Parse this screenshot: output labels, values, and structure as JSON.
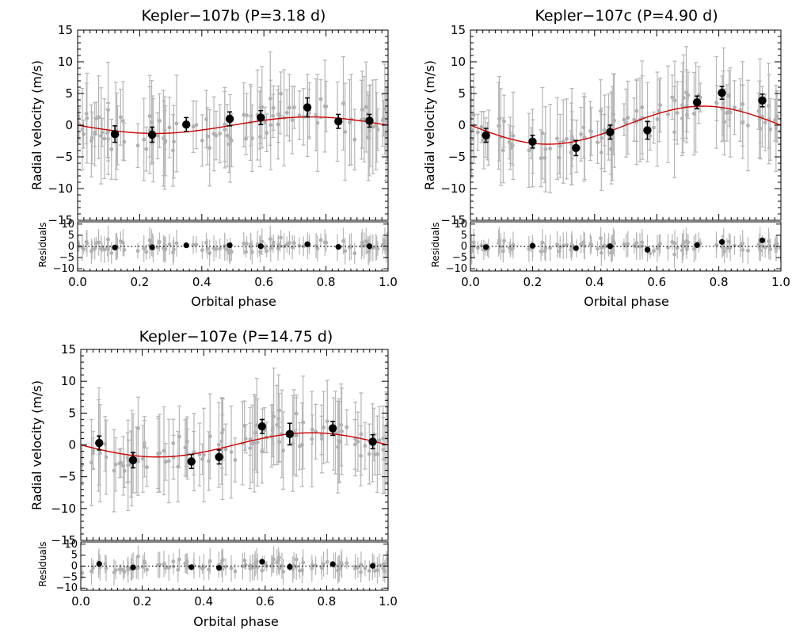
{
  "chart_data": [
    {
      "type": "scatter",
      "title": "Kepler−107b (P=3.18 d)",
      "xlabel": "Orbital phase",
      "ylabel": "Radial velocity (m/s)",
      "resid_label": "Residuals",
      "xlim": [
        0.0,
        1.0
      ],
      "ylim": [
        -15,
        15
      ],
      "resid_ylim": [
        -11,
        11
      ],
      "xticks": [
        "0.0",
        "0.2",
        "0.4",
        "0.6",
        "0.8",
        "1.0"
      ],
      "yticks": [
        "−15",
        "−10",
        "−5",
        "0",
        "5",
        "10",
        "15"
      ],
      "resid_yticks": [
        "−10",
        "−5",
        "0",
        "5",
        "10"
      ],
      "model": {
        "type": "sine",
        "amplitude": 1.3,
        "phase_offset": 0.0,
        "sign": -1,
        "color": "#cc0000"
      },
      "binned": {
        "phase": [
          0.12,
          0.24,
          0.35,
          0.49,
          0.59,
          0.74,
          0.84,
          0.94
        ],
        "rv": [
          -1.4,
          -1.5,
          0.1,
          1.0,
          1.2,
          2.8,
          0.6,
          0.7
        ],
        "rv_err": [
          1.3,
          1.2,
          1.1,
          1.1,
          1.1,
          1.5,
          1.1,
          1.0
        ],
        "resid": [
          -0.5,
          -0.4,
          0.5,
          0.5,
          0.1,
          1.0,
          -0.2,
          0.1
        ],
        "resid_err": [
          1.0,
          1.0,
          1.0,
          1.0,
          1.0,
          1.2,
          1.0,
          1.0
        ]
      }
    },
    {
      "type": "scatter",
      "title": "Kepler−107c (P=4.90 d)",
      "xlabel": "Orbital phase",
      "ylabel": "Radial velocity (m/s)",
      "resid_label": "Residuals",
      "xlim": [
        0.0,
        1.0
      ],
      "ylim": [
        -15,
        15
      ],
      "resid_ylim": [
        -11,
        11
      ],
      "xticks": [
        "0.0",
        "0.2",
        "0.4",
        "0.6",
        "0.8",
        "1.0"
      ],
      "yticks": [
        "−15",
        "−10",
        "−5",
        "0",
        "5",
        "10",
        "15"
      ],
      "resid_yticks": [
        "−10",
        "−5",
        "0",
        "5",
        "10"
      ],
      "model": {
        "type": "sine",
        "amplitude": 3.0,
        "phase_offset": 0.0,
        "sign": -1,
        "color": "#cc0000"
      },
      "binned": {
        "phase": [
          0.05,
          0.2,
          0.34,
          0.45,
          0.57,
          0.73,
          0.81,
          0.94
        ],
        "rv": [
          -1.6,
          -2.6,
          -3.6,
          -1.1,
          -0.8,
          3.6,
          5.1,
          3.9
        ],
        "rv_err": [
          1.1,
          1.0,
          1.2,
          1.1,
          1.4,
          1.0,
          1.0,
          1.0
        ],
        "resid": [
          -0.3,
          0.3,
          -0.8,
          0.1,
          -1.5,
          0.6,
          2.0,
          2.7
        ],
        "resid_err": [
          1.0,
          1.0,
          1.0,
          1.0,
          1.3,
          1.0,
          1.0,
          1.0
        ]
      }
    },
    {
      "type": "scatter",
      "title": "Kepler−107e (P=14.75 d)",
      "xlabel": "Orbital phase",
      "ylabel": "Radial velocity (m/s)",
      "resid_label": "Residuals",
      "xlim": [
        0.0,
        1.0
      ],
      "ylim": [
        -15,
        15
      ],
      "resid_ylim": [
        -11,
        11
      ],
      "xticks": [
        "0.0",
        "0.2",
        "0.4",
        "0.6",
        "0.8",
        "1.0"
      ],
      "yticks": [
        "−15",
        "−10",
        "−5",
        "0",
        "5",
        "10",
        "15"
      ],
      "resid_yticks": [
        "−10",
        "−5",
        "0",
        "5",
        "10"
      ],
      "model": {
        "type": "sine",
        "amplitude": 1.9,
        "phase_offset": 0.0,
        "sign": -1,
        "color": "#cc0000"
      },
      "binned": {
        "phase": [
          0.06,
          0.17,
          0.36,
          0.45,
          0.59,
          0.68,
          0.82,
          0.95
        ],
        "rv": [
          0.3,
          -2.4,
          -2.6,
          -1.9,
          2.9,
          1.7,
          2.6,
          0.5
        ],
        "rv_err": [
          1.1,
          1.2,
          1.1,
          1.1,
          1.1,
          1.7,
          1.1,
          1.1
        ],
        "resid": [
          1.0,
          -0.6,
          -0.5,
          -0.8,
          2.0,
          -0.3,
          0.9,
          0.1
        ],
        "resid_err": [
          1.0,
          1.0,
          1.0,
          1.0,
          1.0,
          1.6,
          1.0,
          1.0
        ]
      }
    }
  ]
}
